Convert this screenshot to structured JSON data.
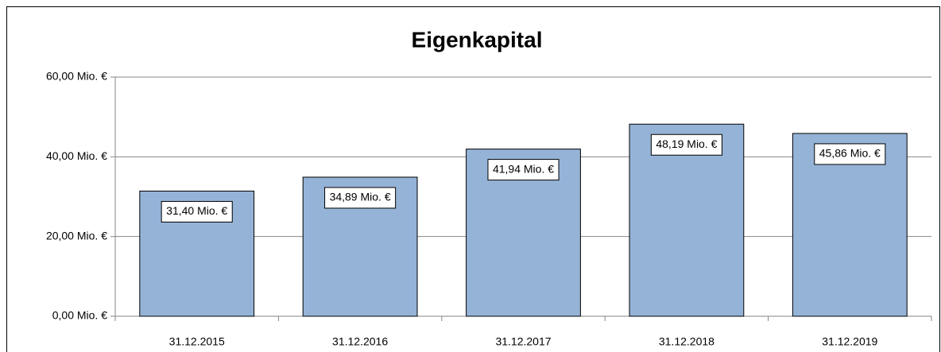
{
  "chart_data": {
    "type": "bar",
    "title": "Eigenkapital",
    "categories": [
      "31.12.2015",
      "31.12.2016",
      "31.12.2017",
      "31.12.2018",
      "31.12.2019"
    ],
    "values": [
      31.4,
      34.89,
      41.94,
      48.19,
      45.86
    ],
    "value_labels": [
      "31,40 Mio. €",
      "34,89 Mio. €",
      "41,94 Mio. €",
      "48,19 Mio. €",
      "45,86 Mio. €"
    ],
    "color": "#95b3d7",
    "ylim": [
      0,
      60
    ],
    "yticks": [
      {
        "value": 0,
        "label": "0,00 Mio. €"
      },
      {
        "value": 20,
        "label": "20,00 Mio. €"
      },
      {
        "value": 40,
        "label": "40,00 Mio. €"
      },
      {
        "value": 60,
        "label": "60,00 Mio. €"
      }
    ],
    "grid": true
  }
}
